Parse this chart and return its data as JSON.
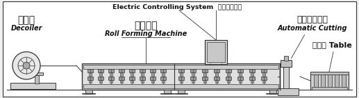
{
  "bg_color": "#f0f0f0",
  "line_color": "#333333",
  "labels": {
    "top_center": "Electric Controlling System  电气控制系统",
    "left_zh": "开卷机",
    "left_en": "Decoiler",
    "center_zh": "成型主机",
    "center_en": "Roll Forming Machine",
    "right_zh": "液压切断系统",
    "right_en": "Automatic Cutting",
    "outlet_zh": "出料台 Table"
  },
  "fig_width": 5.17,
  "fig_height": 1.42,
  "dpi": 100
}
